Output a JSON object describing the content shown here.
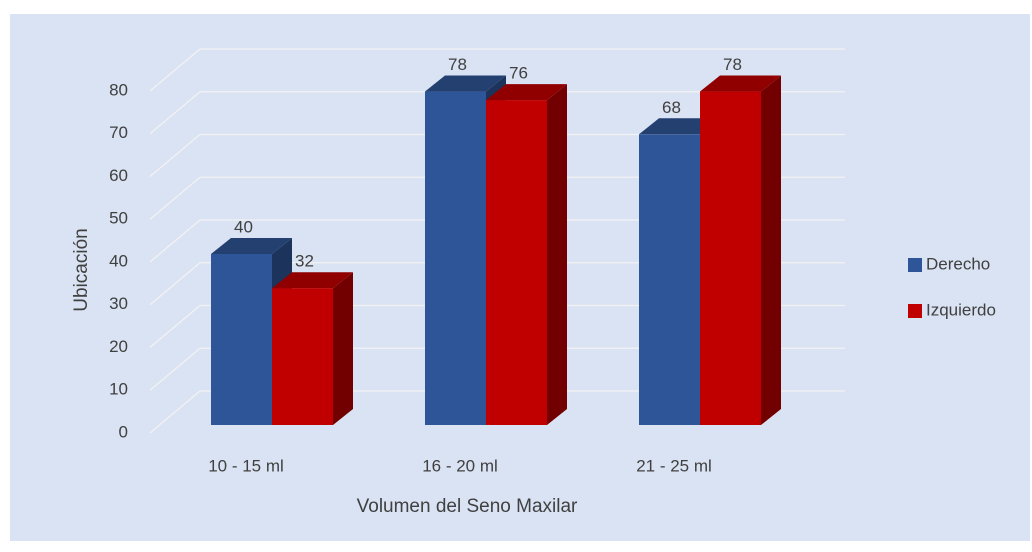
{
  "chart_data": {
    "type": "bar3d",
    "categories": [
      "10 - 15 ml",
      "16 - 20 ml",
      "21 - 25 ml"
    ],
    "series": [
      {
        "name": "Derecho",
        "color": "#2e5597",
        "values": [
          40,
          78,
          68
        ]
      },
      {
        "name": "Izquierdo",
        "color": "#c00000",
        "values": [
          32,
          76,
          78
        ]
      }
    ],
    "ylim": [
      0,
      80
    ],
    "yticks": [
      0,
      10,
      20,
      30,
      40,
      50,
      60,
      70,
      80
    ],
    "y_label": "Ubicación",
    "x_label": "Volumen del Seno Maxilar",
    "grid": true,
    "legend": "right"
  }
}
